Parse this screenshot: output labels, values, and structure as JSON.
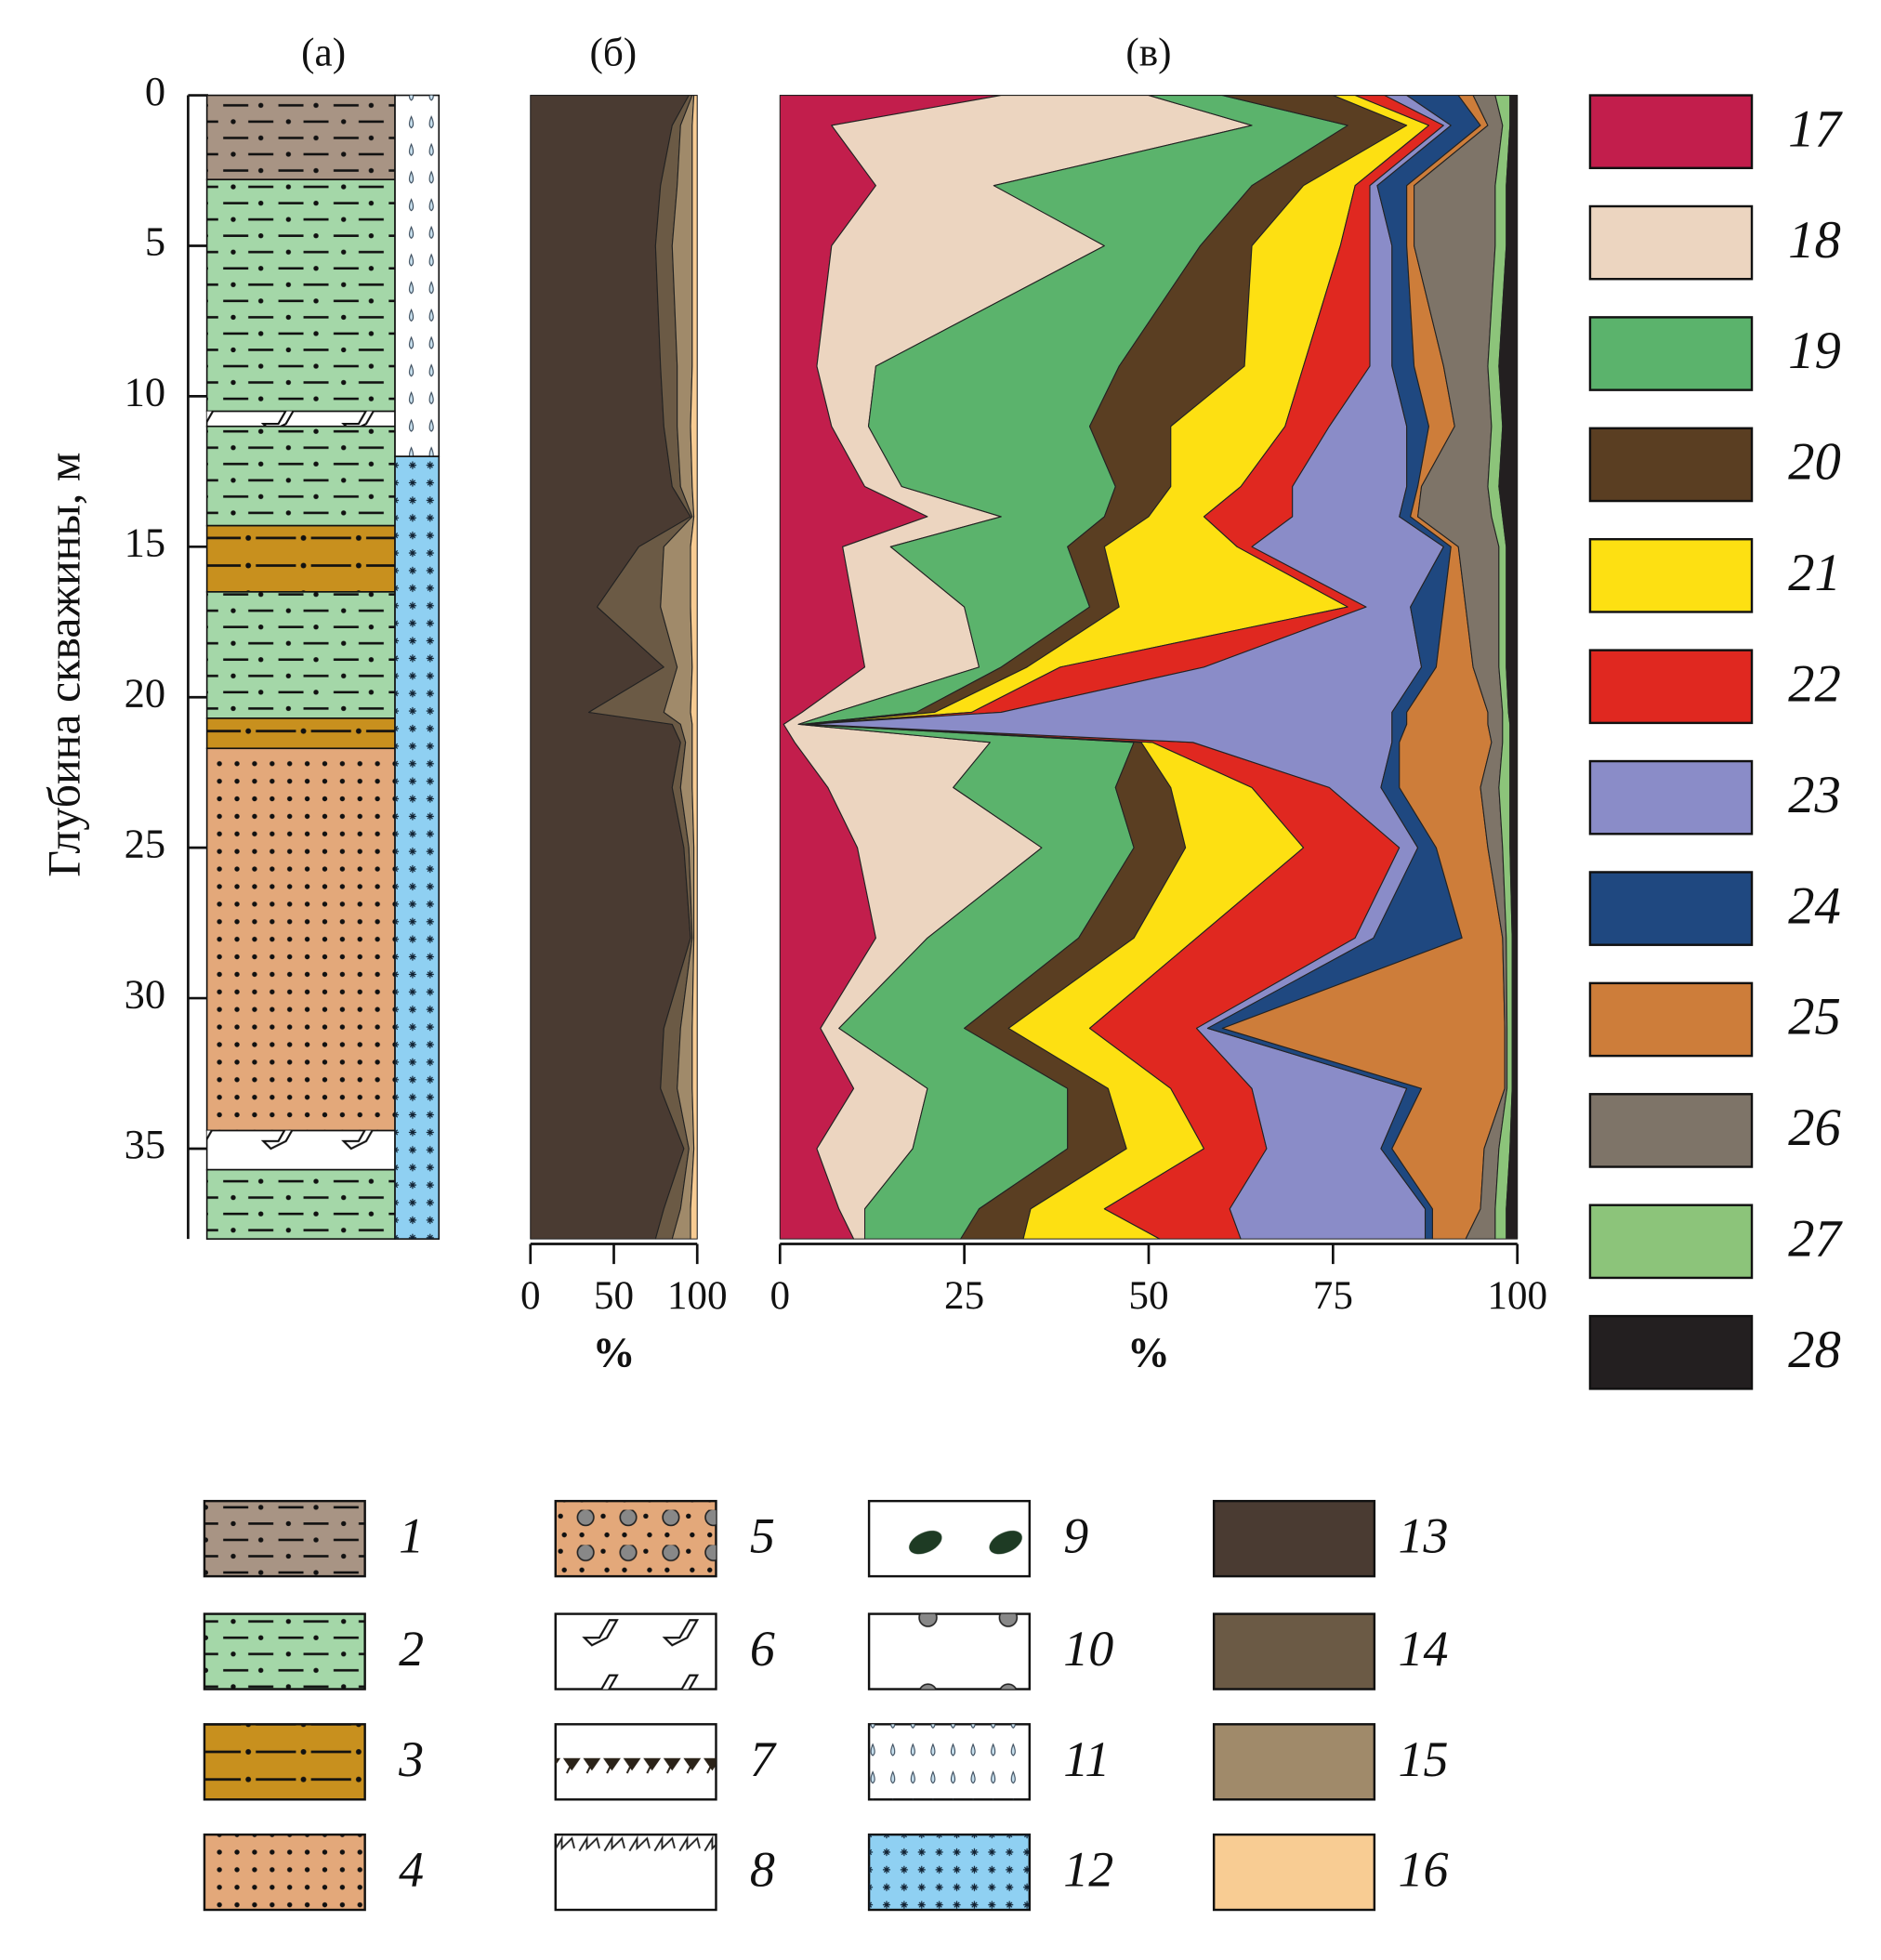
{
  "chart_data": [
    {
      "type": "lithology",
      "title": "(а)",
      "ylabel": "Глубина скважины, м",
      "ylim": [
        0,
        38
      ],
      "yticks": [
        0,
        5,
        10,
        15,
        20,
        25,
        30,
        35
      ],
      "layers": [
        {
          "top": 0,
          "bottom": 2.8,
          "color": "#a89484"
        },
        {
          "top": 2.8,
          "bottom": 10.5,
          "color": "#a4d7a8"
        },
        {
          "top": 10.5,
          "bottom": 11,
          "color": "#ffffff"
        },
        {
          "top": 11,
          "bottom": 14.3,
          "color": "#a4d7a8"
        },
        {
          "top": 14.3,
          "bottom": 16.5,
          "color": "#c8901e"
        },
        {
          "top": 16.5,
          "bottom": 20.7,
          "color": "#a4d7a8"
        },
        {
          "top": 20.7,
          "bottom": 21.7,
          "color": "#c8901e"
        },
        {
          "top": 21.7,
          "bottom": 34.4,
          "color": "#e3a87a"
        },
        {
          "top": 34.4,
          "bottom": 35.7,
          "color": "#ffffff"
        },
        {
          "top": 35.7,
          "bottom": 38,
          "color": "#a4d7a8"
        }
      ],
      "water_layers": [
        {
          "top": 0,
          "bottom": 12,
          "color": "#ffffff"
        },
        {
          "top": 12,
          "bottom": 38,
          "color": "#8fd0f2"
        }
      ],
      "legend": [
        {
          "label": "1",
          "color": "#a89484"
        },
        {
          "label": "2",
          "color": "#a4d7a8"
        },
        {
          "label": "3",
          "color": "#c8901e"
        },
        {
          "label": "4",
          "color": "#e3a87a"
        },
        {
          "label": "5",
          "color": "#e3a87a"
        },
        {
          "label": "6",
          "color": "#ffffff"
        },
        {
          "label": "7",
          "color": "#ffffff"
        },
        {
          "label": "8",
          "color": "#ffffff"
        },
        {
          "label": "9",
          "color": "#ffffff"
        },
        {
          "label": "10",
          "color": "#ffffff"
        },
        {
          "label": "11",
          "color": "#ffffff"
        },
        {
          "label": "12",
          "color": "#8fd0f2"
        }
      ]
    },
    {
      "type": "stacked_area",
      "title": "(б)",
      "xlabel": "%",
      "xlim": [
        0,
        100
      ],
      "xticks": [
        0,
        50,
        100
      ],
      "y": [
        0,
        1,
        3,
        5,
        9,
        11,
        13,
        14,
        15,
        17,
        19,
        20.5,
        20.9,
        21.5,
        23,
        25,
        28,
        31,
        33,
        35,
        37,
        38
      ],
      "series": [
        {
          "name": "13",
          "color": "#4a3b32",
          "values": [
            95,
            85,
            78,
            75,
            78,
            80,
            85,
            96,
            65,
            40,
            80,
            35,
            85,
            90,
            85,
            92,
            96,
            80,
            78,
            92,
            80,
            75
          ]
        },
        {
          "name": "14",
          "color": "#6b5a45",
          "values": [
            2,
            5,
            10,
            10,
            10,
            8,
            5,
            1,
            15,
            38,
            8,
            45,
            5,
            3,
            5,
            3,
            1,
            10,
            10,
            3,
            10,
            10
          ]
        },
        {
          "name": "15",
          "color": "#a08a6a",
          "values": [
            1,
            7,
            9,
            12,
            9,
            8,
            7,
            1,
            16,
            18,
            9,
            16,
            7,
            4,
            7,
            3,
            1,
            7,
            9,
            3,
            6,
            11
          ]
        },
        {
          "name": "16",
          "color": "#f8cc93",
          "values": [
            2,
            3,
            3,
            3,
            3,
            4,
            3,
            2,
            4,
            4,
            3,
            4,
            3,
            3,
            3,
            2,
            2,
            3,
            3,
            2,
            4,
            4
          ]
        }
      ]
    },
    {
      "type": "stacked_area",
      "title": "(в)",
      "xlabel": "%",
      "xlim": [
        0,
        100
      ],
      "xticks": [
        0,
        25,
        50,
        75,
        100
      ],
      "y": [
        0,
        1,
        3,
        5,
        9,
        11,
        13,
        14,
        15,
        17,
        19,
        20.5,
        20.9,
        21.5,
        23,
        25,
        28,
        31,
        33,
        35,
        37,
        38
      ],
      "series": [
        {
          "name": "17",
          "color": "#c21e4c",
          "values": [
            30,
            7,
            13,
            7,
            5,
            7,
            11.5,
            20,
            8.5,
            10,
            11.5,
            3,
            0.5,
            2,
            6.5,
            10.5,
            13,
            5.5,
            10,
            5,
            8,
            10
          ]
        },
        {
          "name": "18",
          "color": "#ecd5c0",
          "values": [
            20,
            57,
            16,
            37,
            8,
            5,
            5,
            10,
            6.5,
            15,
            15.5,
            4.5,
            2,
            26.5,
            17,
            25,
            7,
            2.5,
            10,
            13,
            3.5,
            1.5
          ]
        },
        {
          "name": "19",
          "color": "#5bb36c",
          "values": [
            10,
            13,
            35,
            13,
            33,
            30,
            29,
            14,
            24,
            17,
            3,
            11,
            0.5,
            19.5,
            22,
            12.5,
            20.5,
            17,
            19,
            21,
            15.5,
            13
          ]
        },
        {
          "name": "20",
          "color": "#5a3e22",
          "values": [
            15,
            8,
            7,
            7,
            17,
            11,
            7.5,
            6,
            5,
            4,
            3.5,
            2.5,
            0.3,
            1,
            7.5,
            7,
            7.5,
            6,
            5.5,
            8,
            7,
            8.5
          ]
        },
        {
          "name": "21",
          "color": "#fde012",
          "values": [
            3,
            3,
            7,
            12,
            8,
            15.5,
            9.5,
            7.5,
            18,
            31,
            4.5,
            5,
            0.3,
            1.5,
            11,
            16,
            8.5,
            11,
            8.5,
            10.5,
            10,
            18.5
          ]
        },
        {
          "name": "22",
          "color": "#e02820",
          "values": [
            4,
            2,
            2,
            4,
            9,
            6,
            7,
            12,
            2,
            2.5,
            19.5,
            4,
            0.4,
            5.5,
            10.5,
            13,
            21.5,
            14.5,
            11,
            8.5,
            17,
            11
          ]
        },
        {
          "name": "23",
          "color": "#8a8cc8",
          "values": [
            3,
            1,
            1,
            3,
            3,
            10.5,
            15.5,
            14.5,
            26,
            6,
            29.5,
            53,
            79,
            27,
            7,
            2.5,
            2.5,
            1.5,
            21,
            15.5,
            26.5,
            25
          ]
        },
        {
          "name": "24",
          "color": "#1f4880",
          "values": [
            7,
            4,
            4,
            2,
            3,
            3,
            1.5,
            1.5,
            1,
            4.5,
            2,
            2,
            2,
            1,
            2.5,
            2.5,
            12,
            2,
            2,
            1.5,
            1,
            1
          ]
        },
        {
          "name": "25",
          "color": "#cd7d3a",
          "values": [
            2,
            1,
            1,
            1,
            4,
            3.5,
            0.5,
            1,
            1,
            3,
            5,
            11,
            11,
            12.5,
            11,
            7,
            5.5,
            38.3,
            11.3,
            12.5,
            6.5,
            4.5
          ]
        },
        {
          "name": "26",
          "color": "#7e7468",
          "values": [
            3,
            2,
            11,
            11,
            6,
            5,
            9,
            10,
            5.5,
            4.5,
            3.5,
            2,
            2,
            1.5,
            2.5,
            2,
            0.5,
            0.3,
            0.3,
            2,
            2,
            4
          ]
        },
        {
          "name": "27",
          "color": "#8cc47a",
          "values": [
            2,
            1,
            1.5,
            1.5,
            1.5,
            1.5,
            1.5,
            1.5,
            1,
            1,
            1,
            0.8,
            1,
            1,
            1.5,
            1,
            0.8,
            0.7,
            0.7,
            1.5,
            1.5,
            1.5
          ]
        },
        {
          "name": "28",
          "color": "#231f20",
          "values": [
            1,
            1,
            1.5,
            1.5,
            2.5,
            2,
            2.5,
            2,
            1.5,
            1.5,
            1.5,
            1.2,
            1,
            1,
            1,
            1,
            0.7,
            0.7,
            0.7,
            1,
            1.5,
            1.5
          ]
        }
      ]
    }
  ]
}
